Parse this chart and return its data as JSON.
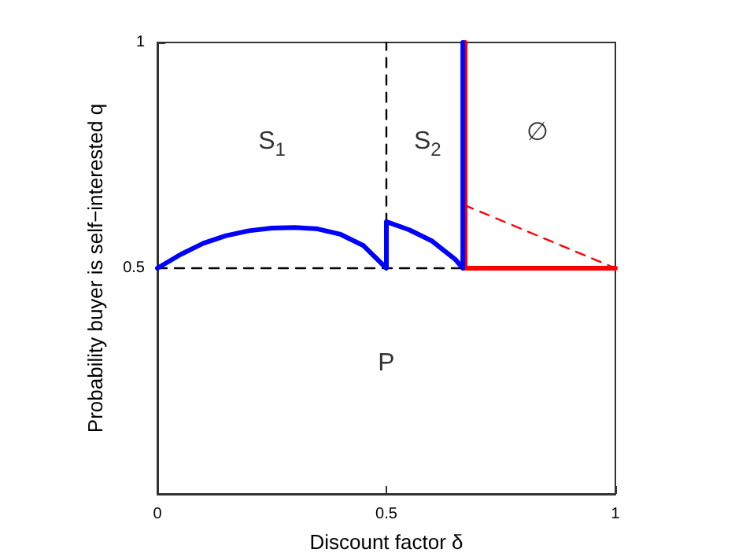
{
  "chart_data": {
    "type": "line",
    "xlabel": "Discount factor δ",
    "ylabel": "Probability buyer is self−interested q",
    "xlim": [
      0,
      1
    ],
    "ylim": [
      0,
      1
    ],
    "xticks": [
      0,
      0.5,
      1
    ],
    "yticks": [
      0.5,
      1
    ],
    "grid": false,
    "marker": "none",
    "series": [
      {
        "color": "#000000",
        "line_style": "dashed",
        "x": [
          0,
          0.667
        ],
        "values": [
          0.5,
          0.5
        ]
      },
      {
        "color": "#000000",
        "line_style": "dashed",
        "x": [
          0.5,
          0.5
        ],
        "values": [
          0.6,
          1
        ]
      },
      {
        "color": "#ff0000",
        "line_style": "dashed",
        "x": [
          0.67,
          1
        ],
        "values": [
          0.64,
          0.5
        ]
      },
      {
        "color": "#ff0000",
        "line_style": "solid",
        "x": [
          0.672,
          0.672,
          1
        ],
        "values": [
          1,
          0.5,
          0.5
        ]
      },
      {
        "color": "#0000ff",
        "line_style": "solid",
        "x": [
          0,
          0.05,
          0.1,
          0.15,
          0.2,
          0.25,
          0.3,
          0.35,
          0.4,
          0.45,
          0.5,
          0.5,
          0.55,
          0.6,
          0.65,
          0.667,
          0.667
        ],
        "values": [
          0.5,
          0.53,
          0.555,
          0.572,
          0.583,
          0.589,
          0.59,
          0.587,
          0.575,
          0.55,
          0.5,
          0.603,
          0.585,
          0.56,
          0.52,
          0.5,
          1
        ]
      }
    ],
    "annotations": [
      "S$_{1}$",
      "S$_{2}$",
      "∅",
      "P"
    ]
  }
}
